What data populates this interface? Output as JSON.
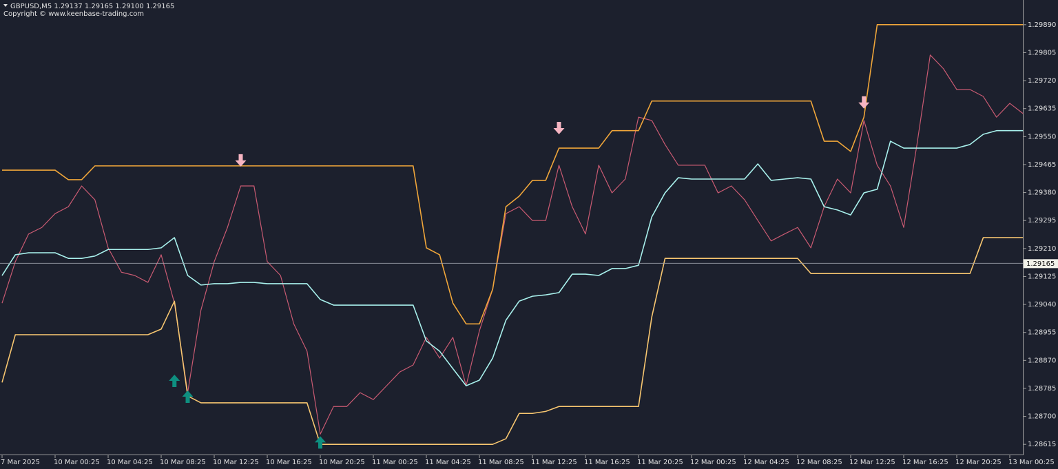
{
  "chart_data": {
    "type": "line",
    "title": "GBPUSD,M5  1.29137 1.29165 1.29100 1.29165",
    "subtitle": "Copyright © www.keenbase-trading.com",
    "categories": [
      "7 Mar 2025",
      null,
      null,
      null,
      "10 Mar 00:25",
      null,
      null,
      null,
      "10 Mar 04:25",
      null,
      null,
      null,
      "10 Mar 08:25",
      null,
      null,
      null,
      "10 Mar 12:25",
      null,
      null,
      null,
      "10 Mar 16:25",
      null,
      null,
      null,
      "10 Mar 20:25",
      null,
      null,
      null,
      "11 Mar 00:25",
      null,
      null,
      null,
      "11 Mar 04:25",
      null,
      null,
      null,
      "11 Mar 08:25",
      null,
      null,
      null,
      "11 Mar 12:25",
      null,
      null,
      null,
      "11 Mar 16:25",
      null,
      null,
      null,
      "11 Mar 20:25",
      null,
      null,
      null,
      "12 Mar 00:25",
      null,
      null,
      null,
      "12 Mar 04:25",
      null,
      null,
      null,
      "12 Mar 08:25",
      null,
      null,
      null,
      "12 Mar 12:25",
      null,
      null,
      null,
      "12 Mar 16:25",
      null,
      null,
      null,
      "12 Mar 20:25",
      null,
      null,
      null,
      "13 Mar 00:25",
      null
    ],
    "series": [
      {
        "color": "#c95a72",
        "values": [
          1.29044,
          1.2917,
          1.29254,
          1.29274,
          1.29316,
          1.29337,
          1.294,
          1.29358,
          1.29212,
          1.29138,
          1.29128,
          1.29107,
          1.29191,
          1.29044,
          1.28772,
          1.29023,
          1.2917,
          1.29274,
          1.294,
          1.294,
          1.2917,
          1.29128,
          1.28981,
          1.28898,
          1.28646,
          1.2873,
          1.2873,
          1.28772,
          1.28751,
          1.28793,
          1.28835,
          1.28856,
          1.2894,
          1.28877,
          1.2894,
          1.28793,
          1.2896,
          1.29086,
          1.29316,
          1.29337,
          1.29295,
          1.29295,
          1.29463,
          1.29337,
          1.29254,
          1.29463,
          1.29379,
          1.29421,
          1.29609,
          1.29599,
          1.29526,
          1.29463,
          1.29463,
          1.29463,
          1.29379,
          1.294,
          1.29358,
          1.29295,
          1.29233,
          1.29254,
          1.29274,
          1.29212,
          1.29337,
          1.29421,
          1.29379,
          1.29599,
          1.29463,
          1.294,
          1.29274,
          1.29526,
          1.29798,
          1.29756,
          1.29693,
          1.29693,
          1.29672,
          1.29609,
          1.29651,
          1.2962
        ]
      },
      {
        "color": "#f0a63a",
        "values": [
          1.29448,
          1.29448,
          1.29448,
          1.29448,
          1.29448,
          1.29419,
          1.29419,
          1.29461,
          1.29461,
          1.29461,
          1.29461,
          1.29461,
          1.29461,
          1.29461,
          1.29461,
          1.29461,
          1.29461,
          1.29461,
          1.29461,
          1.29461,
          1.29461,
          1.29461,
          1.29461,
          1.29461,
          1.29461,
          1.29461,
          1.29461,
          1.29461,
          1.29461,
          1.29461,
          1.29461,
          1.29461,
          1.29212,
          1.29191,
          1.29044,
          1.28981,
          1.28981,
          1.29086,
          1.29337,
          1.29369,
          1.29417,
          1.29417,
          1.29515,
          1.29515,
          1.29515,
          1.29515,
          1.29568,
          1.29568,
          1.29568,
          1.29658,
          1.29658,
          1.29658,
          1.29658,
          1.29658,
          1.29658,
          1.29658,
          1.29658,
          1.29658,
          1.29658,
          1.29658,
          1.29658,
          1.29658,
          1.29536,
          1.29536,
          1.29505,
          1.29609,
          1.2989,
          1.2989,
          1.2989,
          1.2989,
          1.2989,
          1.2989,
          1.2989,
          1.2989,
          1.2989,
          1.2989,
          1.2989,
          1.2989
        ]
      },
      {
        "color": "#f7c670",
        "values": [
          1.28803,
          1.28948,
          1.28948,
          1.28948,
          1.28948,
          1.28948,
          1.28948,
          1.28948,
          1.28948,
          1.28948,
          1.28948,
          1.28948,
          1.28965,
          1.2905,
          1.28762,
          1.28741,
          1.28741,
          1.28741,
          1.28741,
          1.28741,
          1.28741,
          1.28741,
          1.28741,
          1.28741,
          1.28615,
          1.28615,
          1.28615,
          1.28615,
          1.28615,
          1.28615,
          1.28615,
          1.28615,
          1.28615,
          1.28615,
          1.28615,
          1.28615,
          1.28615,
          1.28615,
          1.28632,
          1.28709,
          1.28709,
          1.28715,
          1.2873,
          1.2873,
          1.2873,
          1.2873,
          1.2873,
          1.2873,
          1.2873,
          1.29002,
          1.2918,
          1.2918,
          1.2918,
          1.2918,
          1.2918,
          1.2918,
          1.2918,
          1.2918,
          1.2918,
          1.2918,
          1.2918,
          1.29134,
          1.29134,
          1.29134,
          1.29134,
          1.29134,
          1.29134,
          1.29134,
          1.29134,
          1.29134,
          1.29134,
          1.29134,
          1.29134,
          1.29134,
          1.29243,
          1.29243,
          1.29243,
          1.29243
        ]
      },
      {
        "color": "#a8f0ec",
        "values": [
          1.29128,
          1.29191,
          1.29197,
          1.29197,
          1.29197,
          1.2918,
          1.2918,
          1.29187,
          1.29207,
          1.29207,
          1.29207,
          1.29207,
          1.29212,
          1.29243,
          1.29128,
          1.29099,
          1.29103,
          1.29103,
          1.29107,
          1.29107,
          1.29103,
          1.29103,
          1.29103,
          1.29103,
          1.29055,
          1.29038,
          1.29038,
          1.29038,
          1.29038,
          1.29038,
          1.29038,
          1.29038,
          1.28929,
          1.28898,
          1.28845,
          1.28793,
          1.2881,
          1.28877,
          1.28992,
          1.2905,
          1.29065,
          1.29069,
          1.29076,
          1.29132,
          1.29132,
          1.29128,
          1.29149,
          1.29149,
          1.29159,
          1.29306,
          1.29379,
          1.29425,
          1.29421,
          1.29421,
          1.29421,
          1.29421,
          1.29421,
          1.29467,
          1.29417,
          1.29421,
          1.29425,
          1.29421,
          1.29337,
          1.29327,
          1.29312,
          1.29379,
          1.2939,
          1.29536,
          1.29515,
          1.29515,
          1.29515,
          1.29515,
          1.29515,
          1.29526,
          1.29557,
          1.29568,
          1.29568,
          1.29568
        ]
      },
      {
        "color": "#f6b5c2",
        "marker": "arrow-down",
        "values": [
          null,
          null,
          null,
          null,
          null,
          null,
          null,
          null,
          null,
          null,
          null,
          null,
          null,
          null,
          null,
          null,
          null,
          null,
          1.29459,
          null,
          null,
          null,
          null,
          null,
          null,
          null,
          null,
          null,
          null,
          null,
          null,
          null,
          null,
          null,
          null,
          null,
          null,
          null,
          null,
          null,
          null,
          null,
          1.29557,
          null,
          null,
          null,
          null,
          null,
          null,
          null,
          null,
          null,
          null,
          null,
          null,
          null,
          null,
          null,
          null,
          null,
          null,
          null,
          null,
          null,
          null,
          1.29635,
          null,
          null,
          null,
          null,
          null,
          null,
          null,
          null,
          null,
          null,
          null,
          null
        ]
      },
      {
        "color": "#0e8f80",
        "marker": "arrow-up",
        "values": [
          null,
          null,
          null,
          null,
          null,
          null,
          null,
          null,
          null,
          null,
          null,
          null,
          null,
          1.28789,
          1.28741,
          null,
          null,
          null,
          null,
          null,
          null,
          null,
          null,
          null,
          1.28602,
          null,
          null,
          null,
          null,
          null,
          null,
          null,
          null,
          null,
          null,
          null,
          null,
          null,
          null,
          null,
          null,
          null,
          null,
          null,
          null,
          null,
          null,
          null,
          null,
          null,
          null,
          null,
          null,
          null,
          null,
          null,
          null,
          null,
          null,
          null,
          null,
          null,
          null,
          null,
          null,
          null,
          null,
          null,
          null,
          null,
          null,
          null,
          null,
          null,
          null,
          null,
          null,
          null
        ]
      }
    ],
    "current_price": 1.29165,
    "ylim": [
      1.28584,
      1.29965
    ],
    "yticks": [
      1.28615,
      {
        "value": 1.287,
        "label": "1.28700"
      },
      1.28785,
      {
        "value": 1.2887,
        "label": "1.28870"
      },
      1.28955,
      {
        "value": 1.2904,
        "label": "1.29040"
      },
      1.29125,
      {
        "value": 1.2921,
        "label": "1.29210"
      },
      1.29295,
      {
        "value": 1.2938,
        "label": "1.29380"
      },
      1.29465,
      {
        "value": 1.2955,
        "label": "1.29550"
      },
      1.29635,
      {
        "value": 1.2972,
        "label": "1.29720"
      },
      1.29805,
      {
        "value": 1.2989,
        "label": "1.29890"
      }
    ],
    "grid": false
  }
}
